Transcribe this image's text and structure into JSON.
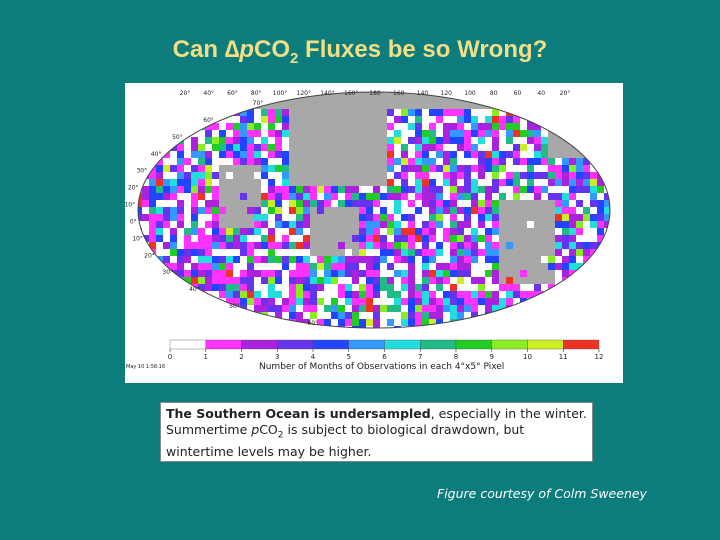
{
  "title": {
    "prefix": "Can ",
    "symbol": "∆",
    "italic": "p",
    "main": "CO",
    "subscript": "2",
    "suffix": " Fluxes be so Wrong?"
  },
  "figure": {
    "lon_labels": [
      "20°",
      "40°",
      "60°",
      "80°",
      "100°",
      "120°",
      "140°",
      "160°",
      "180",
      "160",
      "140",
      "120",
      "100",
      "80",
      "60",
      "40",
      "20°"
    ],
    "lat_labels": [
      "70°",
      "60°",
      "50°",
      "40°",
      "30°",
      "20°",
      "10°",
      "0°",
      "10°",
      "20°",
      "30°",
      "40°",
      "50°",
      "60°"
    ],
    "colorbar_ticks": [
      0,
      1,
      2,
      3,
      4,
      5,
      6,
      7,
      8,
      9,
      10,
      11,
      12
    ],
    "colorbar_title": "Number of Months of Observations in each 4°x5° Pixel",
    "timestamp": "May 10 1:58:16"
  },
  "note": {
    "bold": "The Southern Ocean is undersampled",
    "text1": ", especially in the winter.  Summertime ",
    "italic": "p",
    "co": "CO",
    "subscript": "2",
    "text2": " is subject to biological drawdown, but wintertime levels may be higher."
  },
  "credit": "Figure courtesy of Colm Sweeney"
}
